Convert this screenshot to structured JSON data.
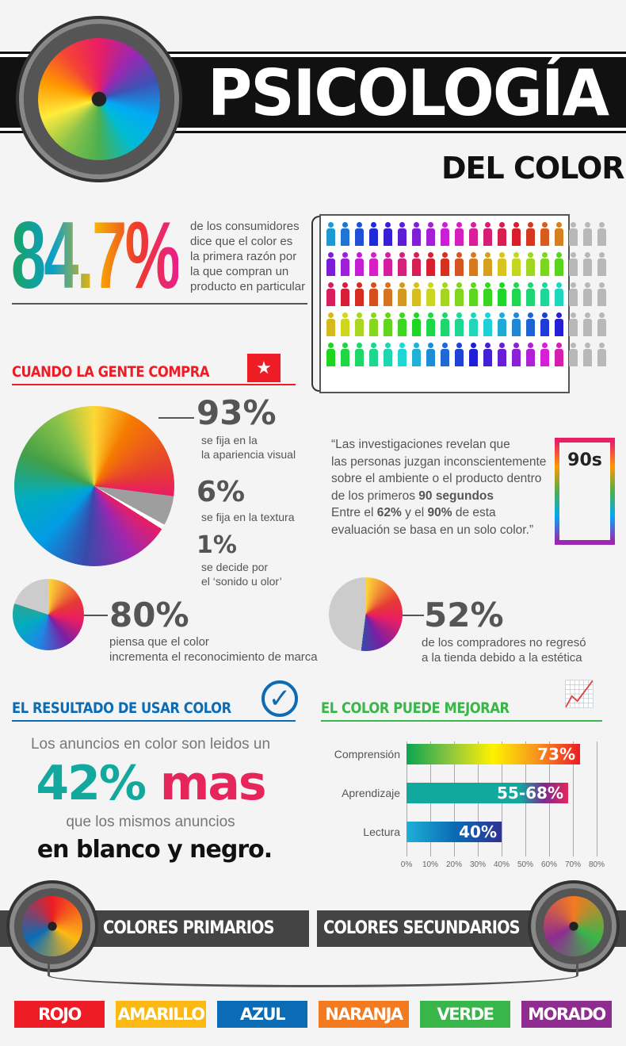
{
  "header": {
    "title": "PSICOLOGÍA",
    "subtitle": "DEL COLOR"
  },
  "stat_main": {
    "value": "84.7%",
    "text": [
      "de los consumidores",
      "dice que el color es",
      "la primera razón por",
      "la que compran un",
      "producto en particular"
    ],
    "people_colored": 85,
    "people_total": 100
  },
  "section_shopping": {
    "title": "CUANDO LA GENTE COMPRA",
    "items": [
      {
        "value": "93%",
        "text": [
          "se fija en la",
          "la apariencia visual"
        ]
      },
      {
        "value": "6%",
        "text": [
          "se fija en la textura"
        ]
      },
      {
        "value": "1%",
        "text": [
          "se decide por",
          "el ‘sonido u olor’"
        ]
      }
    ]
  },
  "quote": {
    "line1": "“Las investigaciones revelan que",
    "line2": "las personas juzgan inconscientemente",
    "line3": "sobre el ambiente o el producto dentro",
    "line4a": "de los primeros ",
    "line4b": "90 segundos",
    "line5a": "Entre el ",
    "line5b": "62%",
    "line5c": " y el ",
    "line5d": "90%",
    "line5e": " de esta",
    "line6": "evaluación se basa en un solo color.”",
    "hourglass_label": "90s"
  },
  "stat80": {
    "value": "80%",
    "text": [
      "piensa que el color",
      "incrementa el reconocimiento de marca"
    ]
  },
  "stat52": {
    "value": "52%",
    "text": [
      "de los compradores no regresó",
      "a la tienda debido a la estética"
    ]
  },
  "section_result": {
    "title": "EL RESULTADO DE USAR COLOR",
    "line1": "Los anuncios en color son leidos un",
    "big_a": "42%",
    "big_b": " mas",
    "line3": "que los mismos anuncios",
    "line4": "en blanco y negro."
  },
  "section_improve": {
    "title": "EL COLOR PUEDE MEJORAR"
  },
  "chart_data": {
    "type": "bar",
    "orientation": "horizontal",
    "categories": [
      "Comprensión",
      "Aprendizaje",
      "Lectura"
    ],
    "values": [
      73,
      68,
      40
    ],
    "labels": [
      "73%",
      "55-68%",
      "40%"
    ],
    "xlim": [
      0,
      80
    ],
    "xticks": [
      "0%",
      "10%",
      "20%",
      "30%",
      "40%",
      "50%",
      "60%",
      "70%",
      "80%"
    ],
    "grid": true
  },
  "footer": {
    "primary": "COLORES PRIMARIOS",
    "secondary": "COLORES SECUNDARIOS",
    "colors": [
      {
        "name": "ROJO",
        "hex": "#ee1c25"
      },
      {
        "name": "AMARILLO",
        "hex": "#fdb913"
      },
      {
        "name": "AZUL",
        "hex": "#0b6cb5"
      },
      {
        "name": "NARANJA",
        "hex": "#f47a20"
      },
      {
        "name": "VERDE",
        "hex": "#3ab54a"
      },
      {
        "name": "MORADO",
        "hex": "#8e2c90"
      }
    ]
  }
}
